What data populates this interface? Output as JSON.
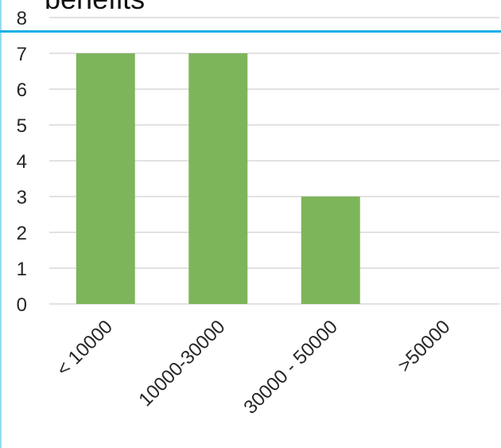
{
  "chart_data": {
    "type": "bar",
    "title": "benefits",
    "xlabel": "",
    "ylabel": "",
    "categories": [
      "< 10000",
      "10000-30000",
      "30000 - 50000",
      ">50000"
    ],
    "values": [
      7,
      7,
      3,
      0
    ],
    "ylim": [
      0,
      8
    ],
    "yticks": [
      "0",
      "1",
      "2",
      "3",
      "4",
      "5",
      "6",
      "7",
      "8"
    ],
    "grid": true,
    "legend": "none",
    "bar_color": "#7db55b",
    "grid_color": "#d9d9d9"
  },
  "colors": {
    "accent_line": "#19b0e8"
  }
}
